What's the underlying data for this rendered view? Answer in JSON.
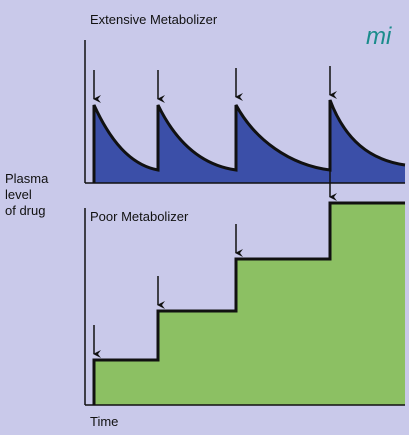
{
  "panels": [
    {
      "title": "Extensive Metabolizer"
    },
    {
      "title": "Poor Metabolizer"
    }
  ],
  "y_label": [
    "Plasma",
    "level",
    "of drug"
  ],
  "x_label": "Time",
  "logo": "mi"
}
